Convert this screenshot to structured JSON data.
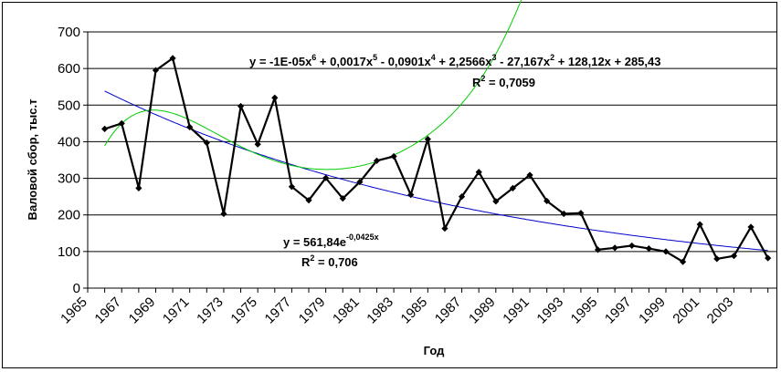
{
  "chart_data": {
    "type": "line",
    "xlabel": "Год",
    "ylabel": "Валовой сбор, тыс.т",
    "ylim": [
      0,
      700
    ],
    "y_ticks": [
      "0",
      "100",
      "200",
      "300",
      "400",
      "500",
      "600",
      "700"
    ],
    "x_ticks": [
      "1965",
      "1967",
      "1969",
      "1971",
      "1973",
      "1975",
      "1977",
      "1979",
      "1981",
      "1983",
      "1985",
      "1987",
      "1989",
      "1991",
      "1993",
      "1995",
      "1997",
      "1999",
      "2001",
      "2003"
    ],
    "grid": "horizontal",
    "colors": {
      "data": "#000000",
      "polynomial": "#00cc00",
      "exponential": "#0000cc"
    },
    "x": [
      1966,
      1967,
      1968,
      1969,
      1970,
      1971,
      1972,
      1973,
      1974,
      1975,
      1976,
      1977,
      1978,
      1979,
      1980,
      1981,
      1982,
      1983,
      1984,
      1985,
      1986,
      1987,
      1988,
      1989,
      1990,
      1991,
      1992,
      1993,
      1994,
      1995,
      1996,
      1997,
      1998,
      1999,
      2000,
      2001,
      2002,
      2003,
      2004,
      2005
    ],
    "series": [
      {
        "values": [
          435,
          450,
          273,
          595,
          628,
          440,
          397,
          203,
          497,
          393,
          520,
          277,
          240,
          301,
          245,
          290,
          348,
          360,
          255,
          407,
          163,
          250,
          317,
          237,
          273,
          309,
          238,
          203,
          205,
          105,
          110,
          116,
          108,
          100,
          72,
          174,
          80,
          88,
          167,
          82
        ]
      }
    ],
    "trendlines": {
      "polynomial": {
        "type": "polynomial",
        "degree": 6,
        "equation": {
          "prefix": "y = -1E-05x",
          "e6": "6",
          "part2": " + 0,0017x",
          "e5": "5",
          "part3": " - 0,0901x",
          "e4": "4",
          "part4": " + 2,2566x",
          "e3": "3",
          "part5": " - 27,167x",
          "e2": "2",
          "part6": " + 128,12x + 285,43"
        },
        "r2_prefix": "R",
        "r2_exp": "2",
        "r2_value": " = 0,7059",
        "coefficients": [
          -1e-05,
          0.0017,
          -0.0901,
          2.2566,
          -27.167,
          128.12,
          285.43
        ]
      },
      "exponential": {
        "type": "exponential",
        "equation": {
          "prefix": "y = 561,84e",
          "exponent": "-0,0425x"
        },
        "r2_prefix": "R",
        "r2_exp": "2",
        "r2_value": " = 0,706",
        "a": 561.84,
        "b": -0.0425
      }
    }
  }
}
